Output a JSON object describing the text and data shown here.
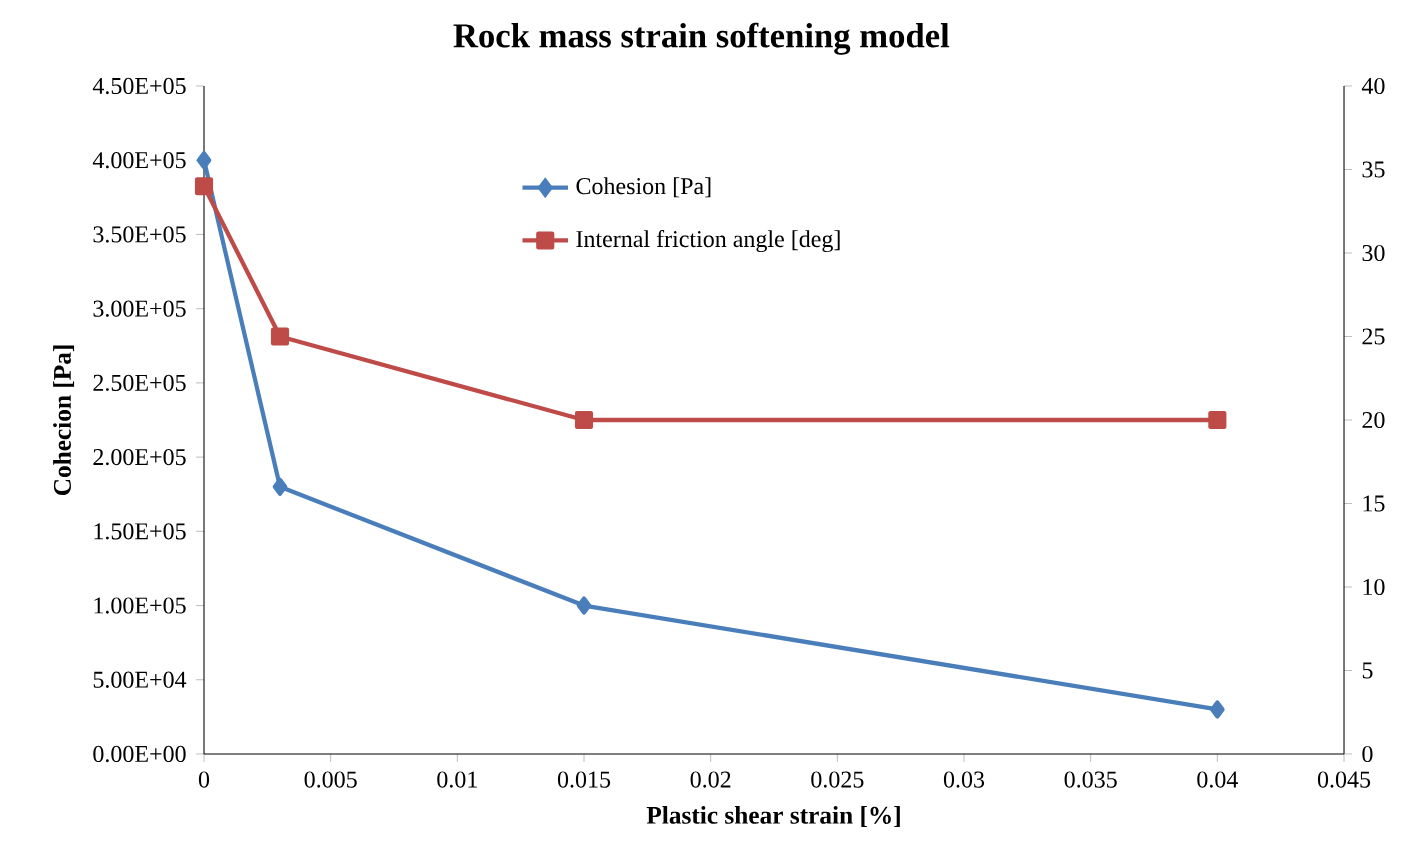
{
  "chart_data": {
    "type": "line",
    "title": "Rock mass strain softening model",
    "xlabel": "Plastic shear strain [%]",
    "ylabel": "Cohecion [Pa]",
    "xlim": [
      0,
      0.045
    ],
    "xticks": [
      0,
      0.005,
      0.01,
      0.015,
      0.02,
      0.025,
      0.03,
      0.035,
      0.04,
      0.045
    ],
    "ylim": [
      0,
      450000
    ],
    "yticks": [
      {
        "value": 0,
        "label": "0.00E+00"
      },
      {
        "value": 50000,
        "label": "5.00E+04"
      },
      {
        "value": 100000,
        "label": "1.00E+05"
      },
      {
        "value": 150000,
        "label": "1.50E+05"
      },
      {
        "value": 200000,
        "label": "2.00E+05"
      },
      {
        "value": 250000,
        "label": "2.50E+05"
      },
      {
        "value": 300000,
        "label": "3.00E+05"
      },
      {
        "value": 350000,
        "label": "3.50E+05"
      },
      {
        "value": 400000,
        "label": "4.00E+05"
      },
      {
        "value": 450000,
        "label": "4.50E+05"
      }
    ],
    "y2lim": [
      0,
      40
    ],
    "y2ticks": [
      0,
      5,
      10,
      15,
      20,
      25,
      30,
      35,
      40
    ],
    "x": [
      0,
      0.003,
      0.015,
      0.04
    ],
    "series": [
      {
        "name": "Cohesion [Pa]",
        "color": "#4a7ebb",
        "marker": "diamond",
        "values": [
          400000,
          180000,
          100000,
          30000
        ]
      },
      {
        "name": "Internal friction angle [deg]",
        "color": "#be4b48",
        "marker": "square",
        "axis": "y2",
        "values": [
          34,
          25,
          20,
          20
        ]
      }
    ],
    "legend": "top",
    "grid": false
  }
}
